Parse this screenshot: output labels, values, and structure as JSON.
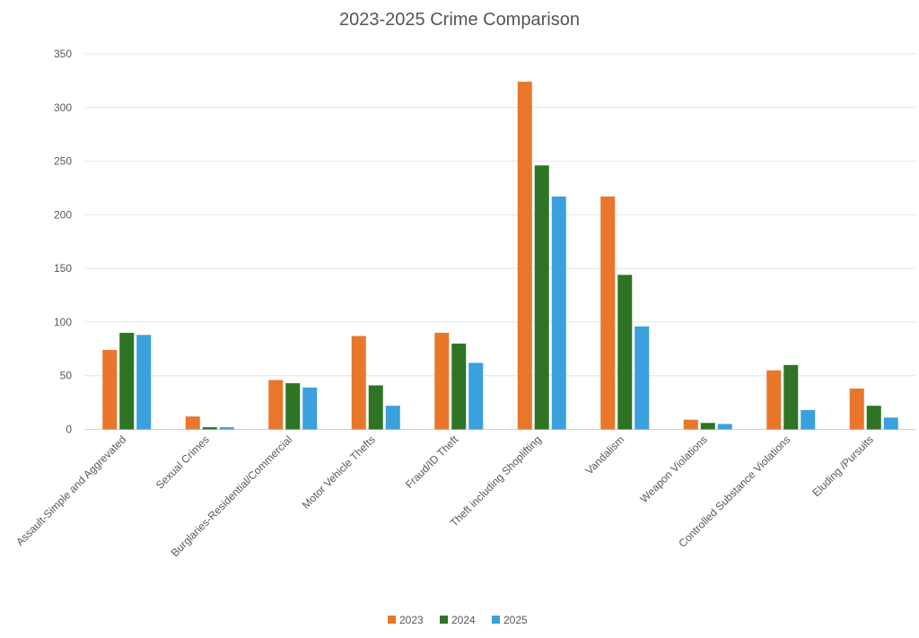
{
  "chart_data": {
    "type": "bar",
    "title": "2023-2025 Crime Comparison",
    "xlabel": "",
    "ylabel": "",
    "ylim": [
      0,
      350
    ],
    "yticks": [
      0,
      50,
      100,
      150,
      200,
      250,
      300,
      350
    ],
    "grid": true,
    "legend_position": "bottom",
    "categories": [
      "Assault-Simple and Aggrevated",
      "Sexual Crimes",
      "Burglaries-Residential/Commercial",
      "Motor Vehicle Thefts",
      "Fraud/ID Theft",
      "Theft including Shoplifting",
      "Vandalism",
      "Weapon Violations",
      "Controlled Substance Violations",
      "Eluding /Pursuits"
    ],
    "series": [
      {
        "name": "2023",
        "color": "#E8762B",
        "values": [
          74,
          12,
          46,
          87,
          90,
          324,
          217,
          9,
          55,
          38
        ]
      },
      {
        "name": "2024",
        "color": "#2E7424",
        "values": [
          90,
          2,
          43,
          41,
          80,
          246,
          144,
          6,
          60,
          22
        ]
      },
      {
        "name": "2025",
        "color": "#3AA0DE",
        "values": [
          88,
          2,
          39,
          22,
          62,
          217,
          96,
          5,
          18,
          11
        ]
      }
    ]
  }
}
